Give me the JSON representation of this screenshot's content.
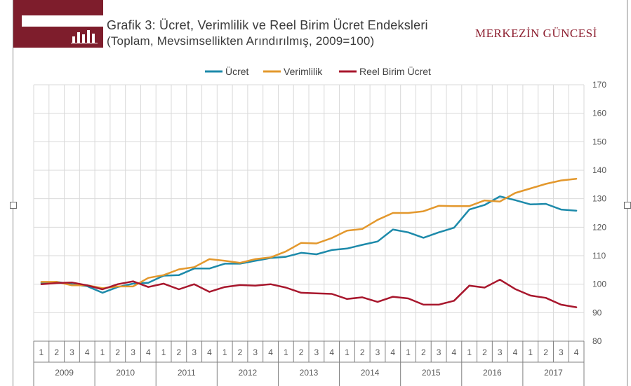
{
  "header": {
    "title_prefix": "Grafik 3:",
    "title": "Ücret, Verimlilik ve Reel Birim Ücret Endeksleri",
    "subtitle": "(Toplam, Mevsimsellikten Arındırılmış, 2009=100)",
    "publication": "MERKEZİN GÜNCESİ"
  },
  "colors": {
    "brand": "#7e1d2c",
    "ucret": "#1d8aaa",
    "verimlilik": "#e3982d",
    "reel": "#a8172d"
  },
  "chart_data": {
    "type": "line",
    "title": "Ücret, Verimlilik ve Reel Birim Ücret Endeksleri",
    "subtitle": "(Toplam, Mevsimsellikten Arındırılmış, 2009=100)",
    "legend_position": "top",
    "y_axis_position": "right",
    "ylim": [
      80,
      170
    ],
    "yticks": [
      80,
      90,
      100,
      110,
      120,
      130,
      140,
      150,
      160,
      170
    ],
    "grid": true,
    "quarters": [
      "1",
      "2",
      "3",
      "4"
    ],
    "years": [
      "2009",
      "2010",
      "2011",
      "2012",
      "2013",
      "2014",
      "2015",
      "2016",
      "2017"
    ],
    "series": [
      {
        "name": "Ücret",
        "color": "#1d8aaa",
        "values": [
          100.4,
          100.8,
          100.0,
          99.3,
          97.0,
          99.0,
          100.2,
          100.5,
          103.0,
          103.2,
          105.5,
          105.5,
          107.2,
          107.2,
          108.2,
          109.2,
          109.6,
          111.0,
          110.5,
          112.0,
          112.5,
          113.8,
          115.0,
          119.2,
          118.2,
          116.3,
          118.2,
          119.8,
          126.2,
          127.8,
          130.8,
          129.5,
          128.0,
          128.2,
          126.2,
          125.8
        ]
      },
      {
        "name": "Verimlilik",
        "color": "#e3982d",
        "values": [
          100.8,
          100.8,
          99.6,
          99.6,
          98.6,
          99.2,
          99.2,
          102.2,
          103.2,
          105.2,
          106.0,
          108.8,
          108.2,
          107.5,
          108.8,
          109.4,
          111.5,
          114.5,
          114.3,
          116.2,
          118.8,
          119.4,
          122.6,
          125.0,
          125.0,
          125.6,
          127.5,
          127.4,
          127.4,
          129.4,
          129.0,
          132.0,
          133.6,
          135.2,
          136.4,
          137.0
        ]
      },
      {
        "name": "Reel Birim Ücret",
        "color": "#a8172d",
        "values": [
          100.0,
          100.4,
          100.6,
          99.6,
          98.2,
          100.0,
          101.0,
          99.0,
          100.2,
          98.2,
          100.0,
          97.3,
          99.0,
          99.7,
          99.5,
          100.0,
          98.8,
          97.0,
          96.8,
          96.6,
          94.8,
          95.4,
          93.8,
          95.6,
          95.0,
          92.8,
          92.8,
          94.2,
          99.5,
          98.8,
          101.6,
          98.3,
          96.0,
          95.2,
          92.8,
          91.9
        ]
      }
    ]
  }
}
